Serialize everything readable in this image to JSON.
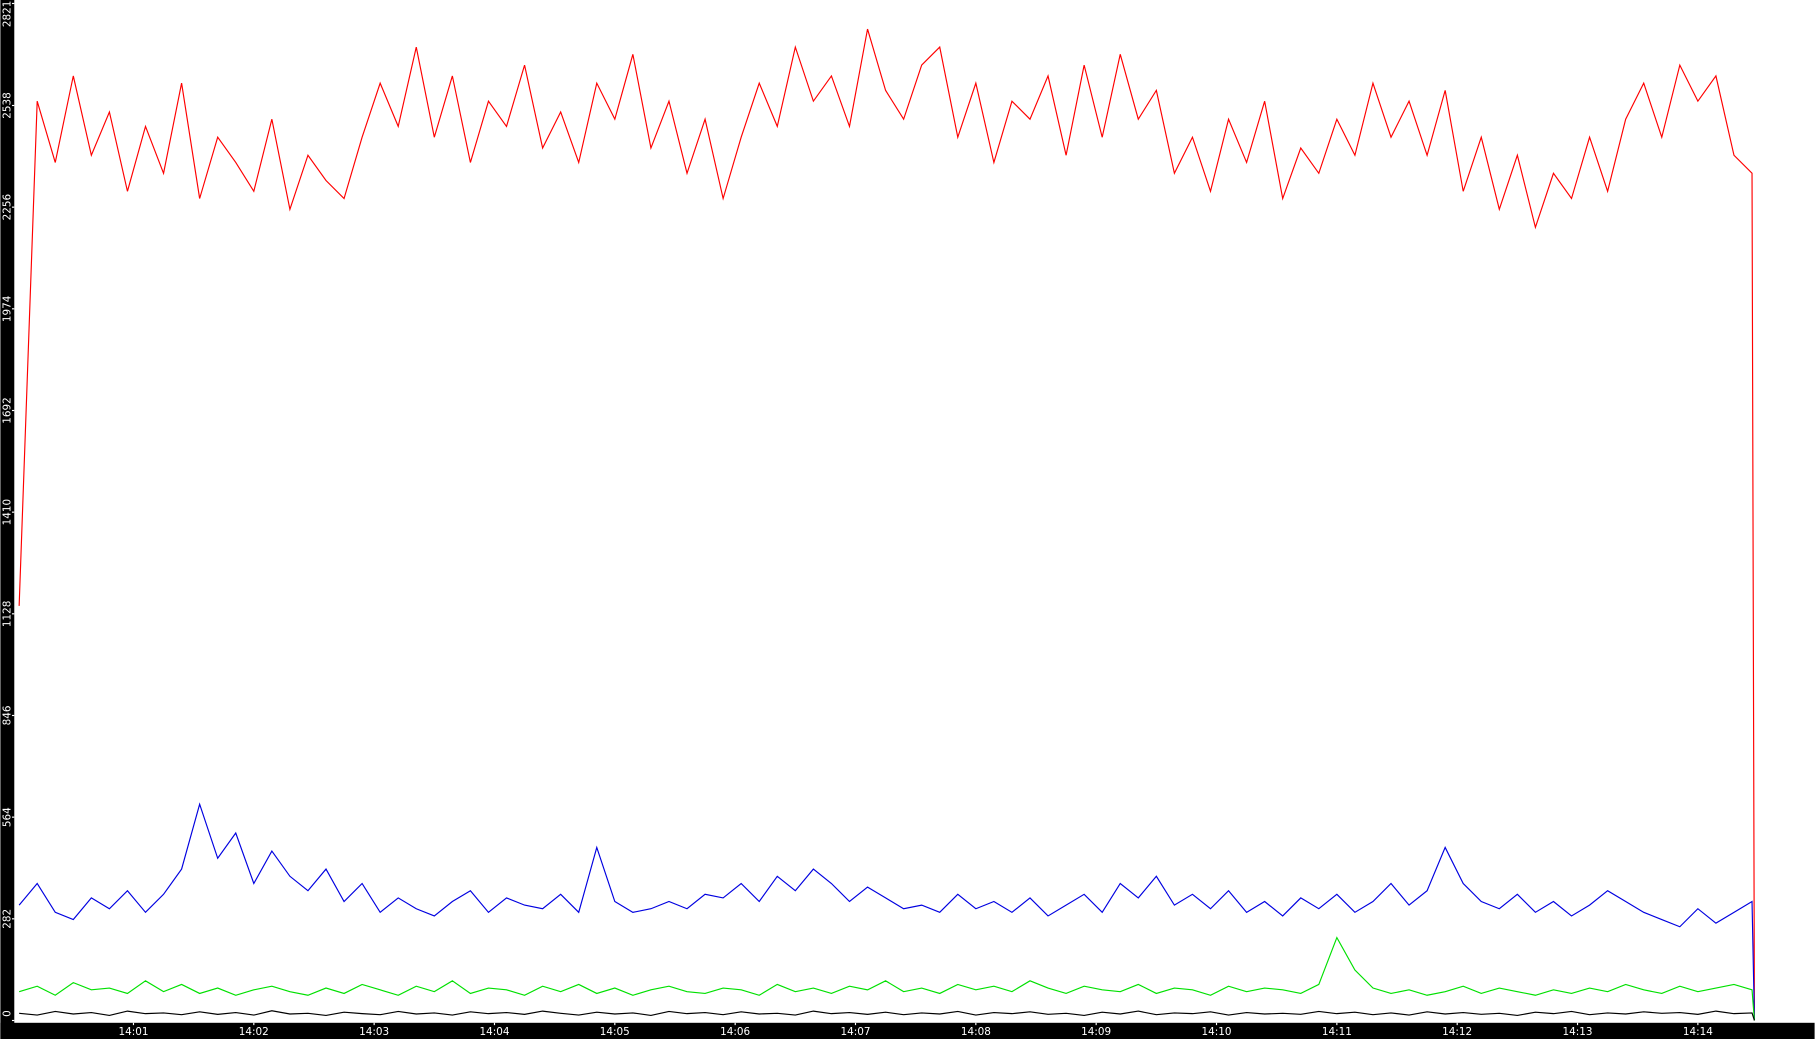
{
  "chart_data": {
    "type": "line",
    "xlim": [
      0,
      14.97
    ],
    "ylim": [
      0,
      2821
    ],
    "xticks": [
      {
        "value": 1,
        "label": "14:01"
      },
      {
        "value": 2,
        "label": "14:02"
      },
      {
        "value": 3,
        "label": "14:03"
      },
      {
        "value": 4,
        "label": "14:04"
      },
      {
        "value": 5,
        "label": "14:05"
      },
      {
        "value": 6,
        "label": "14:06"
      },
      {
        "value": 7,
        "label": "14:07"
      },
      {
        "value": 8,
        "label": "14:08"
      },
      {
        "value": 9,
        "label": "14:09"
      },
      {
        "value": 10,
        "label": "14:10"
      },
      {
        "value": 11,
        "label": "14:11"
      },
      {
        "value": 12,
        "label": "14:12"
      },
      {
        "value": 13,
        "label": "14:13"
      },
      {
        "value": 14,
        "label": "14:14"
      }
    ],
    "yticks": [
      0,
      282,
      564,
      846,
      1128,
      1410,
      1692,
      1974,
      2256,
      2538,
      2821
    ],
    "x": [
      0.05,
      0.2,
      0.35,
      0.5,
      0.65,
      0.8,
      0.95,
      1.1,
      1.25,
      1.4,
      1.55,
      1.7,
      1.85,
      2,
      2.15,
      2.3,
      2.45,
      2.6,
      2.75,
      2.9,
      3.05,
      3.2,
      3.35,
      3.5,
      3.65,
      3.8,
      3.95,
      4.1,
      4.25,
      4.4,
      4.55,
      4.7,
      4.85,
      5,
      5.15,
      5.3,
      5.45,
      5.6,
      5.75,
      5.9,
      6.05,
      6.2,
      6.35,
      6.5,
      6.65,
      6.8,
      6.95,
      7.1,
      7.25,
      7.4,
      7.55,
      7.7,
      7.85,
      8,
      8.15,
      8.3,
      8.45,
      8.6,
      8.75,
      8.9,
      9.05,
      9.2,
      9.35,
      9.5,
      9.65,
      9.8,
      9.95,
      10.1,
      10.25,
      10.4,
      10.55,
      10.7,
      10.85,
      11,
      11.15,
      11.3,
      11.45,
      11.6,
      11.75,
      11.9,
      12.05,
      12.2,
      12.35,
      12.5,
      12.65,
      12.8,
      12.95,
      13.1,
      13.25,
      13.4,
      13.55,
      13.7,
      13.85,
      14,
      14.15,
      14.3,
      14.45,
      14.47
    ],
    "series": [
      {
        "color": "#ff0000",
        "values": [
          1150,
          2550,
          2380,
          2620,
          2400,
          2520,
          2300,
          2480,
          2350,
          2600,
          2280,
          2450,
          2380,
          2300,
          2500,
          2250,
          2400,
          2330,
          2280,
          2450,
          2600,
          2480,
          2700,
          2450,
          2620,
          2380,
          2550,
          2480,
          2650,
          2420,
          2520,
          2380,
          2600,
          2500,
          2680,
          2420,
          2550,
          2350,
          2500,
          2280,
          2450,
          2600,
          2480,
          2700,
          2550,
          2620,
          2480,
          2750,
          2580,
          2500,
          2650,
          2700,
          2450,
          2600,
          2380,
          2550,
          2500,
          2620,
          2400,
          2650,
          2450,
          2680,
          2500,
          2580,
          2350,
          2450,
          2300,
          2500,
          2380,
          2550,
          2280,
          2420,
          2350,
          2500,
          2400,
          2600,
          2450,
          2550,
          2400,
          2580,
          2300,
          2450,
          2250,
          2400,
          2200,
          2350,
          2280,
          2450,
          2300,
          2500,
          2600,
          2450,
          2650,
          2550,
          2620,
          2400,
          2350,
          0
        ]
      },
      {
        "color": "#0000e0",
        "values": [
          320,
          380,
          300,
          280,
          340,
          310,
          360,
          300,
          350,
          420,
          600,
          450,
          520,
          380,
          470,
          400,
          360,
          420,
          330,
          380,
          300,
          340,
          310,
          290,
          330,
          360,
          300,
          340,
          320,
          310,
          350,
          300,
          480,
          330,
          300,
          310,
          330,
          310,
          350,
          340,
          380,
          330,
          400,
          360,
          420,
          380,
          330,
          370,
          340,
          310,
          320,
          300,
          350,
          310,
          330,
          300,
          340,
          290,
          320,
          350,
          300,
          380,
          340,
          400,
          320,
          350,
          310,
          360,
          300,
          330,
          290,
          340,
          310,
          350,
          300,
          330,
          380,
          320,
          360,
          480,
          380,
          330,
          310,
          350,
          300,
          330,
          290,
          320,
          360,
          330,
          300,
          280,
          260,
          310,
          270,
          300,
          330,
          0
        ]
      },
      {
        "color": "#00e000",
        "values": [
          80,
          95,
          70,
          105,
          85,
          90,
          75,
          110,
          80,
          100,
          75,
          90,
          70,
          85,
          95,
          80,
          70,
          90,
          75,
          100,
          85,
          70,
          95,
          80,
          110,
          75,
          90,
          85,
          70,
          95,
          80,
          100,
          75,
          90,
          70,
          85,
          95,
          80,
          75,
          90,
          85,
          70,
          100,
          80,
          90,
          75,
          95,
          85,
          110,
          80,
          90,
          75,
          100,
          85,
          95,
          80,
          110,
          90,
          75,
          95,
          85,
          80,
          100,
          75,
          90,
          85,
          70,
          95,
          80,
          90,
          85,
          75,
          100,
          230,
          140,
          90,
          75,
          85,
          70,
          80,
          95,
          75,
          90,
          80,
          70,
          85,
          75,
          90,
          80,
          100,
          85,
          75,
          95,
          80,
          90,
          100,
          85,
          0
        ]
      },
      {
        "color": "#000000",
        "values": [
          20,
          15,
          25,
          18,
          22,
          14,
          26,
          19,
          21,
          16,
          24,
          17,
          22,
          15,
          27,
          18,
          20,
          14,
          23,
          19,
          16,
          25,
          18,
          21,
          15,
          24,
          19,
          22,
          17,
          26,
          20,
          15,
          23,
          18,
          21,
          14,
          25,
          19,
          22,
          16,
          24,
          18,
          20,
          15,
          26,
          19,
          22,
          17,
          23,
          16,
          21,
          18,
          25,
          15,
          22,
          19,
          24,
          17,
          20,
          14,
          23,
          18,
          26,
          16,
          21,
          19,
          24,
          15,
          22,
          18,
          20,
          17,
          25,
          19,
          23,
          16,
          21,
          15,
          24,
          18,
          22,
          17,
          20,
          14,
          23,
          19,
          25,
          16,
          21,
          18,
          24,
          20,
          22,
          17,
          26,
          19,
          21,
          0
        ]
      }
    ]
  }
}
